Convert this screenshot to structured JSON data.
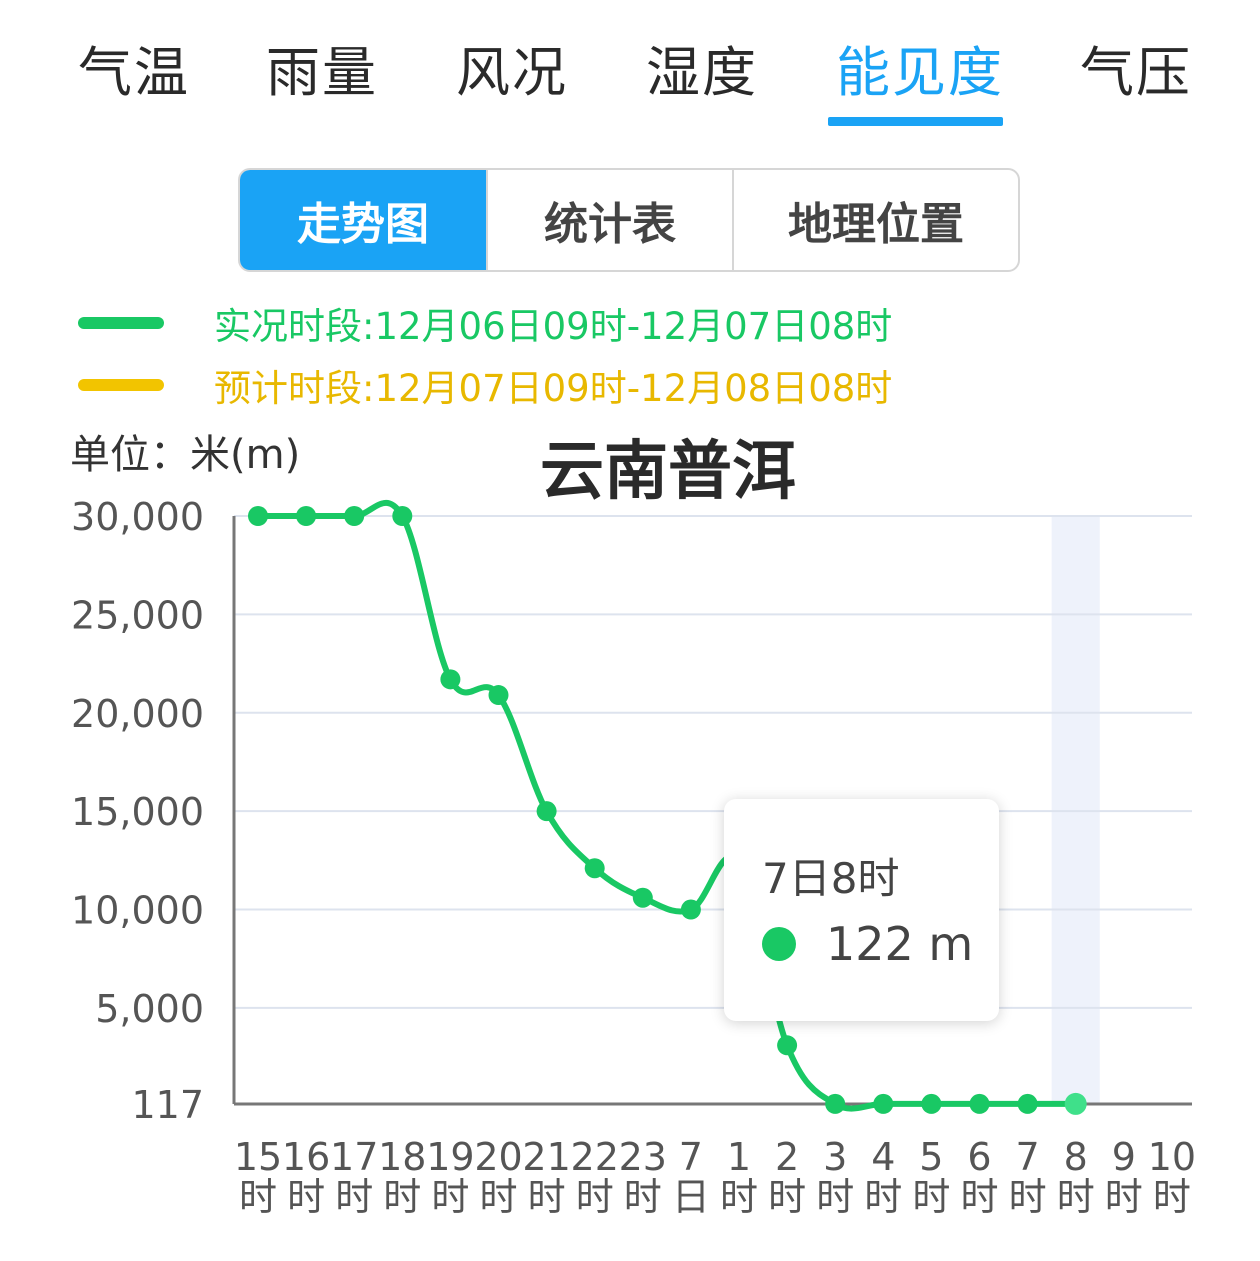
{
  "tabs": [
    {
      "label": "气温",
      "active": false
    },
    {
      "label": "雨量",
      "active": false
    },
    {
      "label": "风况",
      "active": false
    },
    {
      "label": "湿度",
      "active": false
    },
    {
      "label": "能见度",
      "active": true
    },
    {
      "label": "气压",
      "active": false
    }
  ],
  "view_switch": [
    {
      "label": "走势图",
      "active": true
    },
    {
      "label": "统计表",
      "active": false
    },
    {
      "label": "地理位置",
      "active": false
    }
  ],
  "legend": {
    "observed": {
      "label": "实况时段:12月06日09时-12月07日08时",
      "color": "#19c864"
    },
    "forecast": {
      "label": "预计时段:12月07日09时-12月08日08时",
      "color": "#f2c400"
    }
  },
  "unit_label": "单位：米(m)",
  "colors": {
    "accent": "#1aa3f5",
    "observed": "#19c864",
    "forecast": "#f2c400"
  },
  "chart_data": {
    "type": "line",
    "title": "云南普洱",
    "ylabel": "单位：米(m)",
    "y_ticks": [
      "117",
      "5,000",
      "10,000",
      "15,000",
      "20,000",
      "25,000",
      "30,000"
    ],
    "ylim": [
      117,
      30000
    ],
    "grid": true,
    "categories": [
      [
        "15",
        "时"
      ],
      [
        "16",
        "时"
      ],
      [
        "17",
        "时"
      ],
      [
        "18",
        "时"
      ],
      [
        "19",
        "时"
      ],
      [
        "20",
        "时"
      ],
      [
        "21",
        "时"
      ],
      [
        "22",
        "时"
      ],
      [
        "23",
        "时"
      ],
      [
        "7",
        "日"
      ],
      [
        "1",
        "时"
      ],
      [
        "2",
        "时"
      ],
      [
        "3",
        "时"
      ],
      [
        "4",
        "时"
      ],
      [
        "5",
        "时"
      ],
      [
        "6",
        "时"
      ],
      [
        "7",
        "时"
      ],
      [
        "8",
        "时"
      ],
      [
        "9",
        "时"
      ],
      [
        "10",
        "时"
      ]
    ],
    "series": [
      {
        "values": [
          30000,
          30000,
          30000,
          30000,
          21700,
          20900,
          15000,
          12100,
          10600,
          10000,
          12400,
          3100,
          122,
          122,
          122,
          122,
          122,
          122,
          null,
          null
        ]
      }
    ],
    "highlight_index": 17,
    "tooltip": {
      "title": "7日8时",
      "value": "122 m"
    }
  }
}
